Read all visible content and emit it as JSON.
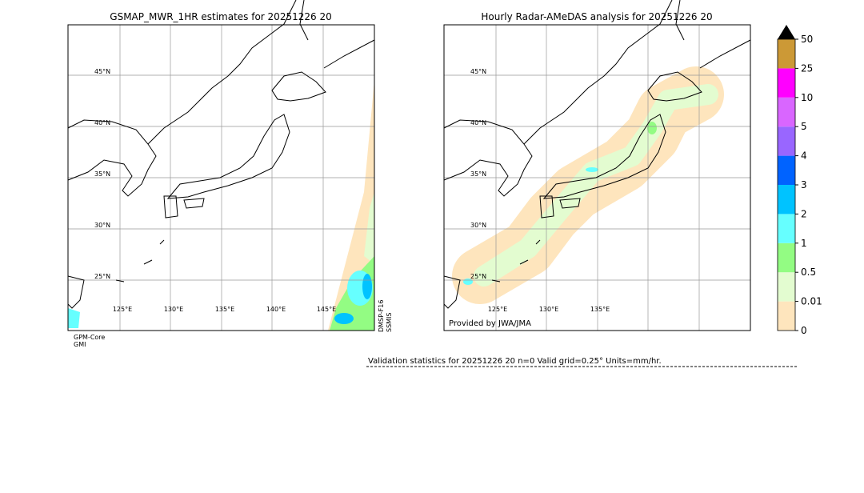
{
  "left_panel": {
    "title": "GSMAP_MWR_1HR estimates for 20251226 20",
    "lat_labels": [
      "45°N",
      "40°N",
      "35°N",
      "30°N",
      "25°N"
    ],
    "lon_labels": [
      "125°E",
      "130°E",
      "135°E",
      "140°E",
      "145°E"
    ],
    "sensor_bottom": [
      "GPM-Core",
      "GMI"
    ],
    "sensor_side": [
      "DMSP-F16",
      "SSMIS"
    ]
  },
  "right_panel": {
    "title": "Hourly Radar-AMeDAS analysis for 20251226 20",
    "lat_labels": [
      "45°N",
      "40°N",
      "35°N",
      "30°N",
      "25°N"
    ],
    "lon_labels": [
      "125°E",
      "130°E",
      "135°E"
    ],
    "credit": "Provided by JWA/JMA"
  },
  "colorbar": {
    "labels": [
      "0",
      "0.01",
      "0.5",
      "1",
      "2",
      "3",
      "4",
      "5",
      "10",
      "25",
      "50"
    ],
    "colors": [
      "#fee5bd",
      "#e3fcd0",
      "#93fc83",
      "#66ffff",
      "#00c3ff",
      "#0063ff",
      "#9966ff",
      "#d966ff",
      "#ff00ff",
      "#cc9936"
    ]
  },
  "footer": {
    "validation": "Validation statistics for 20251226 20  n=0 Valid  grid=0.25° Units=mm/hr."
  }
}
